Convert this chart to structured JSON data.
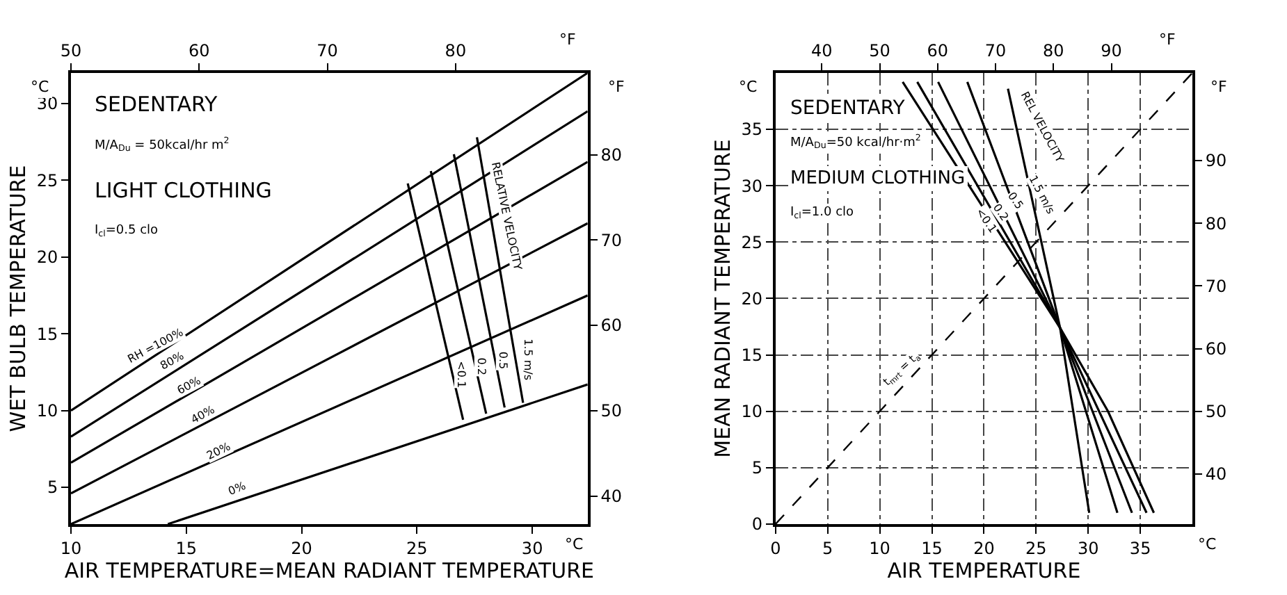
{
  "chart_data": [
    {
      "type": "line",
      "xlabel": "AIR TEMPERATURE=MEAN RADIANT TEMPERATURE",
      "ylabel": "WET BULB TEMPERATURE",
      "xlim": [
        10,
        32.4
      ],
      "xticks": [
        10,
        15,
        20,
        25,
        30
      ],
      "ylim": [
        2.6,
        32.0
      ],
      "yticks": [
        5,
        10,
        15,
        20,
        25,
        30
      ],
      "x2lim": [
        50,
        90.3
      ],
      "x2ticks": [
        50,
        60,
        70,
        80
      ],
      "y2lim": [
        36.7,
        89.6
      ],
      "y2ticks": [
        40,
        50,
        60,
        70,
        80
      ],
      "grid": false,
      "series": [
        {
          "color": "#000000",
          "x": [
            10,
            32.4
          ],
          "values": [
            10,
            32.0
          ]
        },
        {
          "color": "#000000",
          "x": [
            10,
            32.4
          ],
          "values": [
            8.3,
            29.5
          ]
        },
        {
          "color": "#000000",
          "x": [
            10,
            32.4
          ],
          "values": [
            6.6,
            26.2
          ]
        },
        {
          "color": "#000000",
          "x": [
            10,
            32.4
          ],
          "values": [
            4.6,
            22.2
          ]
        },
        {
          "color": "#000000",
          "x": [
            10,
            32.4
          ],
          "values": [
            2.6,
            17.5
          ]
        },
        {
          "color": "#000000",
          "x": [
            14.2,
            32.4
          ],
          "values": [
            2.6,
            11.7
          ]
        },
        {
          "color": "#000000",
          "x": [
            24.6,
            27.0
          ],
          "values": [
            24.8,
            9.4
          ]
        },
        {
          "color": "#000000",
          "x": [
            25.6,
            28.0
          ],
          "values": [
            25.6,
            9.8
          ]
        },
        {
          "color": "#000000",
          "x": [
            26.6,
            28.8
          ],
          "values": [
            26.7,
            10.2
          ]
        },
        {
          "color": "#000000",
          "x": [
            27.6,
            29.6
          ],
          "values": [
            27.8,
            10.5
          ]
        }
      ],
      "annotations": [
        "SEDENTARY",
        "M/A$_{Du}$ = 50kcal/hr m$^{2}$",
        "LIGHT CLOTHING",
        "I$_{cl}$=0.5 clo",
        "°C",
        "°C",
        "°F",
        "°F",
        {
          "text": "RH =100%",
          "x": 13.7,
          "y": 14.2
        },
        {
          "text": "80%",
          "x": 14.4,
          "y": 13.2
        },
        {
          "text": "60%",
          "x": 15.1,
          "y": 11.6
        },
        {
          "text": "40%",
          "x": 15.7,
          "y": 9.7
        },
        {
          "text": "20%",
          "x": 16.4,
          "y": 7.4
        },
        {
          "text": "0%",
          "x": 17.2,
          "y": 4.9
        },
        {
          "text": "<0.1",
          "x": 26.9,
          "y": 12.4
        },
        {
          "text": "0.2",
          "x": 27.8,
          "y": 12.9
        },
        {
          "text": "0.5",
          "x": 28.7,
          "y": 13.3
        },
        {
          "text": "1.5 m/s",
          "x": 29.8,
          "y": 13.3
        },
        {
          "text": "RELATIVE VELOCITY",
          "x": 28.9,
          "y": 22.7
        }
      ]
    },
    {
      "type": "line",
      "xlabel": "AIR TEMPERATURE",
      "ylabel": "MEAN RADIANT TEMPERATURE",
      "xlim": [
        0,
        40
      ],
      "xticks": [
        0,
        5,
        10,
        15,
        20,
        25,
        30,
        35
      ],
      "ylim": [
        0,
        40
      ],
      "yticks": [
        0,
        5,
        10,
        15,
        20,
        25,
        30,
        35
      ],
      "x2lim": [
        32,
        104
      ],
      "x2ticks": [
        40,
        50,
        60,
        70,
        80,
        90
      ],
      "y2lim": [
        32,
        104
      ],
      "y2ticks": [
        40,
        50,
        60,
        70,
        80,
        90
      ],
      "grid": true,
      "series": [
        {
          "color": "#000000",
          "x": [
            12.2,
            27.3,
            31.9,
            36.3
          ],
          "values": [
            39.2,
            17.4,
            10,
            1.0
          ]
        },
        {
          "color": "#000000",
          "x": [
            13.6,
            27.3,
            35.6
          ],
          "values": [
            39.2,
            17.4,
            1.0
          ]
        },
        {
          "color": "#000000",
          "x": [
            15.6,
            27.3,
            34.2
          ],
          "values": [
            39.2,
            17.4,
            1.0
          ]
        },
        {
          "color": "#000000",
          "x": [
            18.4,
            27.3,
            32.8
          ],
          "values": [
            39.2,
            17.4,
            1.0
          ]
        },
        {
          "color": "#000000",
          "x": [
            22.3,
            27.3,
            30.1
          ],
          "values": [
            38.6,
            17.4,
            1.0
          ]
        },
        {
          "color": "#000000",
          "x": [
            0,
            40
          ],
          "values": [
            0,
            40
          ],
          "line_style": "dashed"
        }
      ],
      "annotations": [
        "SEDENTARY",
        "M/A$_{Du}$=50 kcal/hr·m$^{2}$",
        "MEDIUM CLOTHING",
        "I$_{cl}$=1.0 clo",
        "°C",
        "°C",
        "°F",
        "°F",
        "REL VELOCITY",
        {
          "text": "1.5 m/s",
          "x": 25.6,
          "y": 29.2
        },
        {
          "text": "0.5",
          "x": 23.0,
          "y": 28.6
        },
        {
          "text": "0.2",
          "x": 21.7,
          "y": 27.6
        },
        {
          "text": "<0.1",
          "x": 20.2,
          "y": 26.9
        },
        {
          "text": "t$_{mrt}$ = t$_{a}$",
          "x": 12.1,
          "y": 13.6
        }
      ]
    }
  ]
}
